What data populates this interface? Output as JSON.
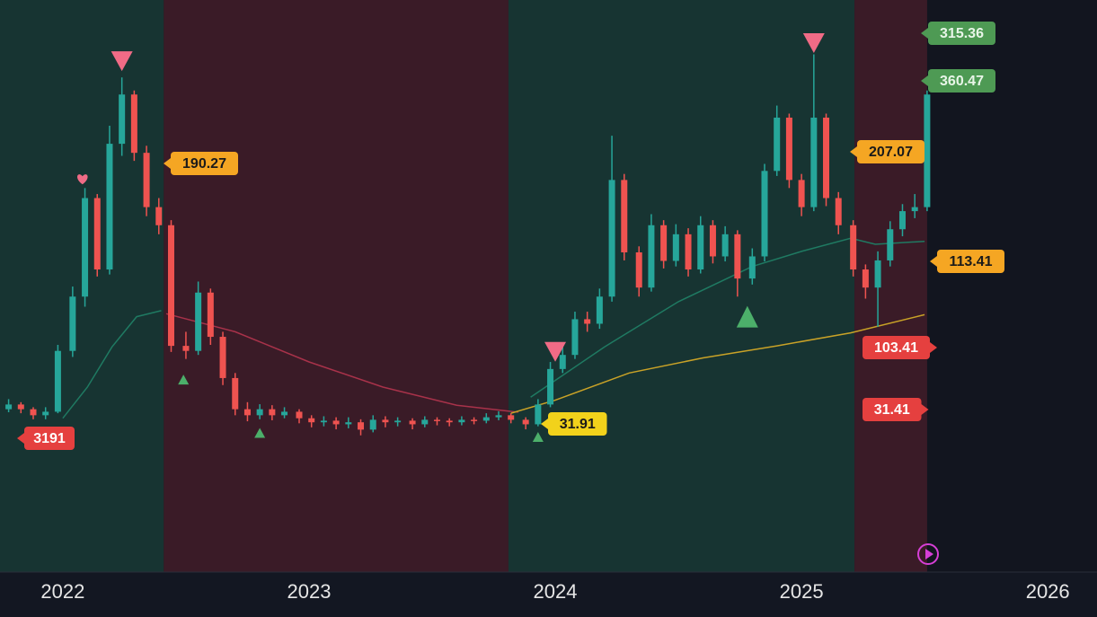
{
  "chart_data": {
    "type": "candlestick",
    "xlim": [
      2021.745,
      2026.2
    ],
    "xticks": [
      2022,
      2023,
      2024,
      2025,
      2026
    ],
    "ylim": [
      -114,
      455
    ],
    "up_color": "#26a69a",
    "down_color": "#ef5350",
    "regions": [
      {
        "start": 2021.745,
        "end": 2022.41,
        "color": "#173432"
      },
      {
        "start": 2022.41,
        "end": 2023.81,
        "color": "#3a1b27"
      },
      {
        "start": 2023.81,
        "end": 2025.215,
        "color": "#173432"
      },
      {
        "start": 2025.215,
        "end": 2025.51,
        "color": "#3a1b27"
      }
    ],
    "x": [
      2021.78,
      2021.83,
      2021.88,
      2021.93,
      2021.98,
      2022.04,
      2022.09,
      2022.14,
      2022.19,
      2022.24,
      2022.29,
      2022.34,
      2022.39,
      2022.44,
      2022.5,
      2022.55,
      2022.6,
      2022.65,
      2022.7,
      2022.75,
      2022.8,
      2022.85,
      2022.9,
      2022.96,
      2023.01,
      2023.06,
      2023.11,
      2023.16,
      2023.21,
      2023.26,
      2023.31,
      2023.36,
      2023.42,
      2023.47,
      2023.52,
      2023.57,
      2023.62,
      2023.67,
      2023.72,
      2023.77,
      2023.82,
      2023.88,
      2023.93,
      2023.98,
      2024.03,
      2024.08,
      2024.13,
      2024.18,
      2024.23,
      2024.28,
      2024.34,
      2024.39,
      2024.44,
      2024.49,
      2024.54,
      2024.59,
      2024.64,
      2024.69,
      2024.74,
      2024.8,
      2024.85,
      2024.9,
      2024.95,
      2025.0,
      2025.05,
      2025.1,
      2025.15,
      2025.21,
      2025.26,
      2025.31,
      2025.36,
      2025.41,
      2025.46,
      2025.51
    ],
    "open": [
      48,
      52.7,
      48,
      42,
      45.5,
      106,
      160,
      258,
      187,
      312,
      361,
      303,
      249,
      231,
      111,
      106,
      164,
      120,
      79,
      48,
      42,
      48,
      42,
      45.5,
      39,
      35,
      36.6,
      33,
      35,
      27.7,
      37.5,
      35,
      36.6,
      33,
      37.5,
      36.6,
      35,
      37.5,
      36.6,
      40,
      42,
      37.5,
      33,
      52.7,
      88,
      102,
      137.5,
      133,
      160,
      276,
      204,
      169,
      231,
      195.5,
      222,
      187,
      231,
      200,
      222,
      178,
      200,
      285,
      338,
      276,
      249,
      338,
      258,
      231,
      187,
      169,
      196,
      227,
      245,
      249
    ],
    "high": [
      58,
      55,
      50,
      50,
      112,
      170,
      268,
      262,
      330,
      378,
      365,
      310,
      258,
      236,
      125,
      175,
      168,
      125,
      84,
      55,
      53,
      52,
      50,
      48,
      42,
      41,
      40,
      40,
      38,
      42,
      41,
      40,
      39,
      41,
      40,
      39,
      41,
      40,
      44,
      46,
      44,
      40,
      58,
      95,
      110,
      145,
      145,
      168,
      320,
      282,
      210,
      242,
      236,
      232,
      228,
      240,
      236,
      230,
      226,
      208,
      292,
      350,
      342,
      282,
      401,
      342,
      264,
      236,
      192,
      205,
      235,
      252,
      262,
      365
    ],
    "low": [
      45,
      44,
      38,
      38,
      44,
      100,
      150,
      180,
      182,
      300,
      295,
      240,
      222,
      105,
      98,
      102,
      112,
      72,
      42,
      36,
      38,
      37,
      39,
      34,
      30,
      31,
      28,
      29,
      22,
      25,
      30,
      31,
      28,
      30,
      32,
      31,
      32,
      33,
      34,
      37,
      34,
      28,
      31,
      50,
      84,
      98,
      125,
      128,
      155,
      196,
      160,
      165,
      188,
      190,
      180,
      183,
      193,
      195,
      160,
      172,
      195,
      280,
      268,
      240,
      245,
      250,
      222,
      180,
      158,
      130,
      190,
      220,
      238,
      245
    ],
    "close": [
      52.7,
      48,
      42,
      45.5,
      106,
      160,
      258,
      187,
      312,
      361,
      303,
      249,
      231,
      111,
      106,
      164,
      120,
      79,
      48,
      42,
      48,
      42,
      45.5,
      39,
      35,
      36.6,
      33,
      35,
      27.7,
      37.5,
      35,
      36.6,
      33,
      37.5,
      36.6,
      35,
      37.5,
      36.6,
      40,
      42,
      37.5,
      33,
      52.7,
      88,
      102,
      137.5,
      133,
      160,
      276,
      204,
      169,
      231,
      195.5,
      222,
      187,
      231,
      200,
      222,
      178,
      200,
      285,
      338,
      276,
      249,
      338,
      258,
      231,
      187,
      169,
      196,
      227,
      245,
      249,
      361
    ],
    "lines": [
      {
        "color": "#1f7a62",
        "x": [
          2022.0,
          2022.1,
          2022.2,
          2022.3,
          2022.4
        ],
        "values": [
          39,
          70,
          110,
          140,
          146
        ]
      },
      {
        "color": "#a8324a",
        "x": [
          2022.42,
          2022.7,
          2023.0,
          2023.3,
          2023.6,
          2023.85
        ],
        "values": [
          143,
          125,
          95,
          70,
          52,
          45
        ]
      },
      {
        "color": "#1f7a62",
        "x": [
          2023.9,
          2024.2,
          2024.5,
          2024.8,
          2025.0,
          2025.2,
          2025.3,
          2025.5
        ],
        "values": [
          60,
          110,
          155,
          190,
          205,
          218,
          212,
          215
        ]
      },
      {
        "color": "#c9a227",
        "x": [
          2023.82,
          2024.0,
          2024.3,
          2024.6,
          2024.9,
          2025.2,
          2025.5
        ],
        "values": [
          44,
          57,
          84,
          99,
          111,
          124,
          142
        ]
      }
    ],
    "markers": [
      {
        "shape": "triangle-down",
        "color": "#f06b86",
        "x": 2022.24,
        "y": 395
      },
      {
        "shape": "triangle-down",
        "color": "#f06b86",
        "x": 2025.05,
        "y": 413
      },
      {
        "shape": "triangle-down",
        "color": "#f06b86",
        "x": 2024.0,
        "y": 106
      },
      {
        "shape": "triangle-up",
        "color": "#4caf6a",
        "x": 2024.78,
        "y": 140
      },
      {
        "shape": "triangle-up-small",
        "color": "#4caf6a",
        "x": 2022.49,
        "y": 77
      },
      {
        "shape": "triangle-up-small",
        "color": "#4caf6a",
        "x": 2022.8,
        "y": 24
      },
      {
        "shape": "triangle-up-small",
        "color": "#4caf6a",
        "x": 2023.93,
        "y": 20
      },
      {
        "shape": "heart",
        "color": "#f06b86",
        "x": 2022.08,
        "y": 277
      }
    ],
    "annotations": [
      {
        "text": "315.36",
        "color": "#4e9a54",
        "text_color": "#e8f5e8"
      },
      {
        "text": "360.47",
        "color": "#4e9a54",
        "text_color": "#e8f5e8"
      },
      {
        "text": "190.27",
        "color": "#f5a623",
        "text_color": "#1a1a1a"
      },
      {
        "text": "207.07",
        "color": "#f5a623",
        "text_color": "#1a1a1a"
      },
      {
        "text": "113.41",
        "color": "#f5a623",
        "text_color": "#1a1a1a"
      },
      {
        "text": "103.41",
        "color": "#e5403f",
        "text_color": "#ffffff"
      },
      {
        "text": "31.41",
        "color": "#e5403f",
        "text_color": "#ffffff"
      },
      {
        "text": "31.91",
        "color": "#f2d21b",
        "text_color": "#1a1a1a"
      },
      {
        "text": "3191",
        "color": "#e5403f",
        "text_color": "#ffffff"
      }
    ]
  }
}
